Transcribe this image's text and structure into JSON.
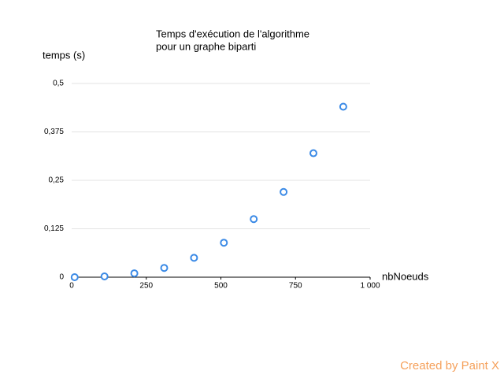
{
  "chart_data": {
    "type": "scatter",
    "title": [
      "Temps d'exécution de l'algorithme",
      "pour un graphe biparti"
    ],
    "y_label": "temps (s)",
    "x_label": "nbNoeuds",
    "x": [
      10,
      110,
      210,
      310,
      410,
      510,
      610,
      710,
      810,
      910
    ],
    "series": [
      {
        "name": "temps",
        "color": "#3b8ae6",
        "values": [
          0,
          0.002,
          0.01,
          0.024,
          0.05,
          0.089,
          0.15,
          0.22,
          0.32,
          0.44
        ]
      }
    ],
    "xlim": [
      0,
      1000
    ],
    "xticks": [
      0,
      250,
      500,
      750,
      {
        "value": 1000,
        "label": "1 000"
      }
    ],
    "ylim": [
      0,
      0.5
    ],
    "yticks": [
      0,
      {
        "value": 0.125,
        "label": "0,125"
      },
      {
        "value": 0.25,
        "label": "0,25"
      },
      {
        "value": 0.375,
        "label": "0,375"
      },
      {
        "value": 0.5,
        "label": "0,5"
      }
    ],
    "grid": true,
    "watermark": "Created by Paint X"
  }
}
